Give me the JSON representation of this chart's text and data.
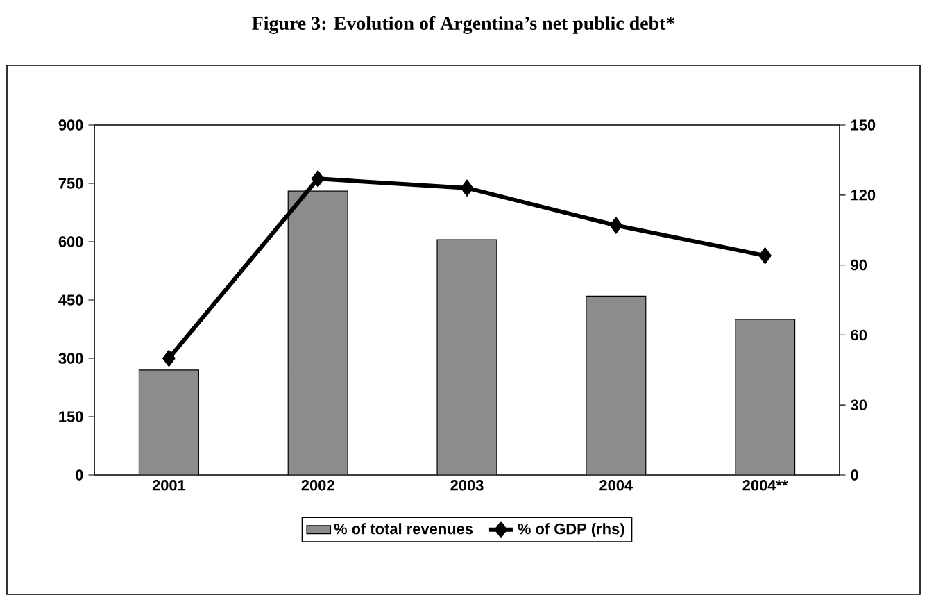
{
  "chart_data": {
    "type": "bar",
    "title": "Figure 3: Evolution of Argentina’s net public debt*",
    "categories": [
      "2001",
      "2002",
      "2003",
      "2004",
      "2004**"
    ],
    "series": [
      {
        "name": "% of total revenues",
        "color": "#8c8c8c",
        "values": [
          270,
          730,
          605,
          460,
          400
        ]
      },
      {
        "name": "% of GDP (rhs)",
        "type": "line",
        "axis": "y2",
        "color": "#000000",
        "values": [
          50,
          127,
          123,
          107,
          94
        ]
      }
    ],
    "ylim": [
      0,
      900
    ],
    "yticks": [
      0,
      150,
      300,
      450,
      600,
      750,
      900
    ],
    "y2lim": [
      0,
      150
    ],
    "y2ticks": [
      0,
      30,
      60,
      90,
      120,
      150
    ],
    "marker": "diamond",
    "legend": "bottom",
    "grid": false
  }
}
